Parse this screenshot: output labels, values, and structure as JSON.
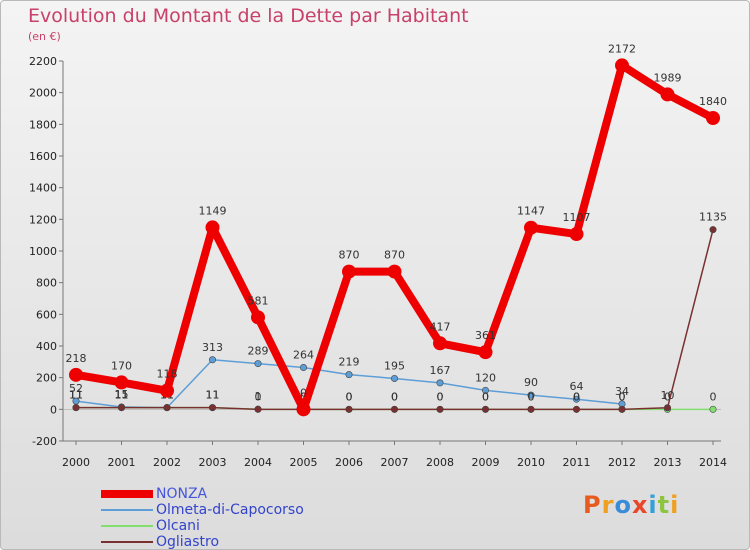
{
  "title": "Evolution du Montant de la Dette par Habitant",
  "subtitle": "(en €)",
  "logo": {
    "text": "Proxiti",
    "colors": [
      "#e85b1e",
      "#f0a020",
      "#3a8bd8",
      "#e8472b",
      "#35a0d8",
      "#8cc63f",
      "#f0a020"
    ]
  },
  "chart_data": {
    "type": "line",
    "title": "Evolution du Montant de la Dette par Habitant",
    "ylabel": "(en €)",
    "xlabel": "",
    "categories": [
      "2000",
      "2001",
      "2002",
      "2003",
      "2004",
      "2005",
      "2006",
      "2007",
      "2008",
      "2009",
      "2010",
      "2011",
      "2012",
      "2013",
      "2014"
    ],
    "ylim": [
      -200,
      2200
    ],
    "yticks": [
      -200,
      0,
      200,
      400,
      600,
      800,
      1000,
      1200,
      1400,
      1600,
      1800,
      2000,
      2200
    ],
    "grid": false,
    "legend_position": "bottom-left",
    "series": [
      {
        "name": "NONZA",
        "color": "#ee0000",
        "values": [
          218,
          170,
          118,
          1149,
          581,
          0,
          870,
          870,
          417,
          361,
          1147,
          1107,
          2172,
          1989,
          1840
        ]
      },
      {
        "name": "Olmeta-di-Capocorso",
        "color": "#5d9ed6",
        "values": [
          52,
          15,
          11,
          313,
          289,
          264,
          219,
          195,
          167,
          120,
          90,
          64,
          34,
          null,
          null
        ]
      },
      {
        "name": "Olcani",
        "color": "#82df6e",
        "values": [
          11,
          11,
          11,
          11,
          1,
          0,
          0,
          0,
          0,
          0,
          0,
          0,
          0,
          0,
          0
        ]
      },
      {
        "name": "Ogliastro",
        "color": "#7a3030",
        "values": [
          11,
          11,
          11,
          11,
          0,
          0,
          0,
          0,
          0,
          0,
          0,
          0,
          0,
          10,
          1135
        ]
      }
    ]
  }
}
